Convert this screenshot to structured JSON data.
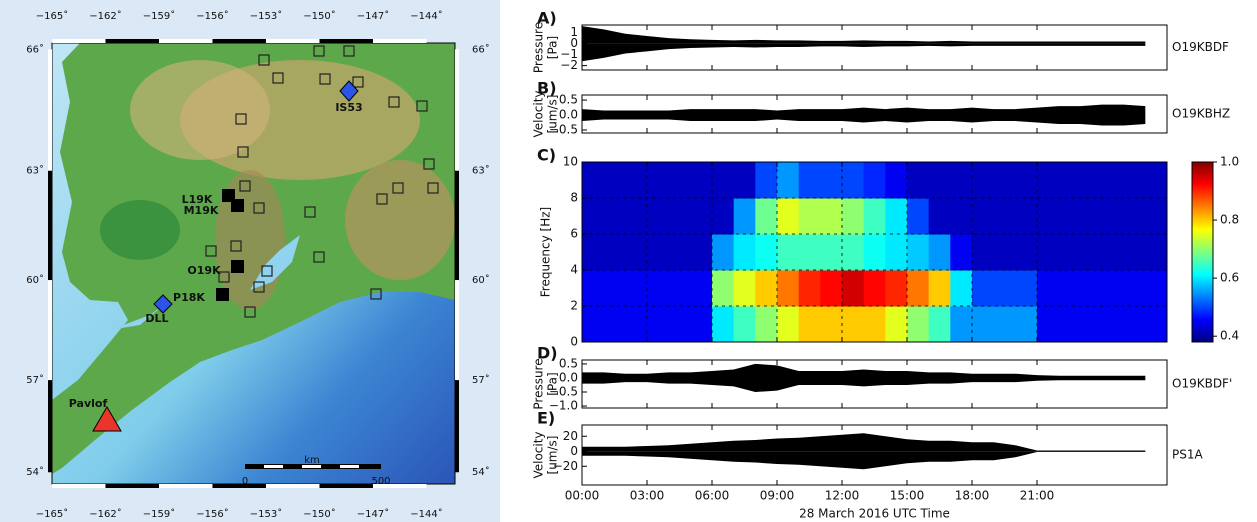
{
  "map": {
    "lonlim": [
      -165,
      -142.4
    ],
    "latlim": [
      53.6,
      66.15
    ],
    "lon_ticks": [
      {
        "value": -165,
        "label": "−165˚"
      },
      {
        "value": -162,
        "label": "−162˚"
      },
      {
        "value": -159,
        "label": "−159˚"
      },
      {
        "value": -156,
        "label": "−156˚"
      },
      {
        "value": -153,
        "label": "−153˚"
      },
      {
        "value": -150,
        "label": "−150˚"
      },
      {
        "value": -147,
        "label": "−147˚"
      },
      {
        "value": -144,
        "label": "−144˚"
      }
    ],
    "lat_ticks": [
      {
        "value": 66,
        "label": "66˚"
      },
      {
        "value": 63,
        "label": "63˚"
      },
      {
        "value": 60,
        "label": "60˚"
      },
      {
        "value": 57,
        "label": "57˚"
      },
      {
        "value": 54,
        "label": "54˚"
      }
    ],
    "stations": [
      "IS53",
      "L19K",
      "M19K",
      "O19K",
      "P18K",
      "DLL"
    ],
    "volcano": "Pavlof",
    "scale_unit": "km",
    "scale_labels": [
      "0",
      "500"
    ]
  },
  "chart_data": [
    {
      "type": "waveform",
      "panel_label": "A)",
      "ylabel": [
        "Pressure",
        "[Pa]"
      ],
      "station": "O19KBDF",
      "color": "#000000",
      "x": [
        0,
        1,
        2,
        3,
        4,
        5,
        6,
        7,
        8,
        9,
        10,
        11,
        12,
        13,
        14,
        15,
        16,
        17,
        18,
        19,
        20,
        21,
        22,
        23,
        24,
        25,
        26
      ],
      "values": [
        1.6,
        1.3,
        0.9,
        0.7,
        0.5,
        0.4,
        0.35,
        0.3,
        0.35,
        0.3,
        0.3,
        0.25,
        0.25,
        0.3,
        0.25,
        0.25,
        0.2,
        0.25,
        0.2,
        0.2,
        0.2,
        0.2,
        0.2,
        0.2,
        0.2,
        0.2,
        0.2
      ],
      "xlim": [
        0,
        27
      ],
      "ylim": [
        -2.4,
        1.7
      ],
      "yticks": [
        1,
        0,
        {
          "value": -1,
          "label": "−1"
        },
        {
          "value": -2,
          "label": "−2"
        }
      ]
    },
    {
      "type": "waveform",
      "panel_label": "B)",
      "ylabel": [
        "Velocity",
        "[um/s]"
      ],
      "station": "O19KBHZ",
      "color": "#000000",
      "x": [
        0,
        1,
        2,
        3,
        4,
        5,
        6,
        7,
        8,
        9,
        10,
        11,
        12,
        13,
        14,
        15,
        16,
        17,
        18,
        19,
        20,
        21,
        22,
        23,
        24,
        25,
        26
      ],
      "values": [
        0.2,
        0.15,
        0.15,
        0.15,
        0.15,
        0.2,
        0.2,
        0.2,
        0.2,
        0.15,
        0.2,
        0.2,
        0.2,
        0.25,
        0.2,
        0.25,
        0.2,
        0.2,
        0.25,
        0.2,
        0.2,
        0.25,
        0.3,
        0.3,
        0.35,
        0.35,
        0.3
      ],
      "xlim": [
        0,
        27
      ],
      "ylim": [
        -0.6,
        0.67
      ],
      "yticks": [
        0.5,
        {
          "value": 0,
          "label": "0.0"
        },
        {
          "value": -0.5,
          "label": "−0.5"
        }
      ]
    },
    {
      "type": "heatmap",
      "panel_label": "C)",
      "ylabel": [
        "Frequency [Hz]"
      ],
      "colormap": "jet",
      "grid": true,
      "x": [
        0,
        1,
        2,
        3,
        4,
        5,
        6,
        7,
        8,
        9,
        10,
        11,
        12,
        13,
        14,
        15,
        16,
        17,
        18,
        19,
        20,
        21,
        22,
        23,
        24,
        25,
        26
      ],
      "y": [
        0,
        2,
        4,
        6,
        8
      ],
      "z": [
        [
          0.45,
          0.45,
          0.45,
          0.45,
          0.45,
          0.45,
          0.6,
          0.65,
          0.7,
          0.75,
          0.8,
          0.8,
          0.8,
          0.8,
          0.75,
          0.7,
          0.65,
          0.55,
          0.55,
          0.55,
          0.55,
          0.45,
          0.45,
          0.45,
          0.45,
          0.45,
          0.45
        ],
        [
          0.45,
          0.45,
          0.45,
          0.45,
          0.45,
          0.45,
          0.7,
          0.75,
          0.8,
          0.85,
          0.9,
          0.92,
          0.95,
          0.92,
          0.9,
          0.85,
          0.8,
          0.6,
          0.5,
          0.5,
          0.5,
          0.45,
          0.45,
          0.45,
          0.45,
          0.45,
          0.45
        ],
        [
          0.42,
          0.42,
          0.42,
          0.42,
          0.42,
          0.42,
          0.55,
          0.6,
          0.62,
          0.65,
          0.65,
          0.65,
          0.65,
          0.62,
          0.6,
          0.58,
          0.55,
          0.45,
          0.42,
          0.42,
          0.42,
          0.42,
          0.42,
          0.42,
          0.42,
          0.42,
          0.42
        ],
        [
          0.42,
          0.42,
          0.42,
          0.42,
          0.42,
          0.42,
          0.42,
          0.55,
          0.68,
          0.75,
          0.72,
          0.72,
          0.7,
          0.65,
          0.6,
          0.5,
          0.42,
          0.42,
          0.42,
          0.42,
          0.42,
          0.42,
          0.42,
          0.42,
          0.42,
          0.42,
          0.42
        ],
        [
          0.42,
          0.42,
          0.42,
          0.42,
          0.42,
          0.42,
          0.42,
          0.42,
          0.5,
          0.55,
          0.5,
          0.5,
          0.5,
          0.48,
          0.45,
          0.42,
          0.42,
          0.42,
          0.42,
          0.42,
          0.42,
          0.42,
          0.42,
          0.42,
          0.42,
          0.42,
          0.42
        ]
      ],
      "xlim": [
        0,
        27
      ],
      "ylim": [
        0,
        10
      ],
      "yticks": [
        0,
        2,
        4,
        6,
        8,
        10
      ],
      "clim": [
        0.38,
        1.0
      ],
      "cticks": [
        {
          "value": 1.0,
          "label": "1.0"
        },
        0.8,
        0.6,
        0.4
      ]
    },
    {
      "type": "waveform",
      "panel_label": "D)",
      "ylabel": [
        "Pressure",
        "[Pa]"
      ],
      "station": "O19KBDF'",
      "color": "#000000",
      "x": [
        0,
        1,
        2,
        3,
        4,
        5,
        6,
        7,
        8,
        9,
        10,
        11,
        12,
        13,
        14,
        15,
        16,
        17,
        18,
        19,
        20,
        21,
        22,
        23,
        24,
        25,
        26
      ],
      "values": [
        0.2,
        0.2,
        0.15,
        0.15,
        0.2,
        0.2,
        0.25,
        0.3,
        0.5,
        0.45,
        0.25,
        0.25,
        0.25,
        0.3,
        0.25,
        0.25,
        0.2,
        0.2,
        0.15,
        0.15,
        0.15,
        0.1,
        0.08,
        0.08,
        0.08,
        0.08,
        0.08
      ],
      "xlim": [
        0,
        27
      ],
      "ylim": [
        -1.07,
        0.64
      ],
      "yticks": [
        0.5,
        {
          "value": 0,
          "label": "0.0"
        },
        {
          "value": -0.5,
          "label": "−0.5"
        },
        {
          "value": -1,
          "label": "−1.0"
        }
      ]
    },
    {
      "type": "waveform",
      "panel_label": "E)",
      "ylabel": [
        "Velocity",
        "[um/s]"
      ],
      "station": "PS1A",
      "color": "#000000",
      "x": [
        0,
        1,
        2,
        3,
        4,
        5,
        6,
        7,
        8,
        9,
        10,
        11,
        12,
        13,
        14,
        15,
        16,
        17,
        18,
        19,
        20,
        21,
        22,
        23,
        24,
        25,
        26
      ],
      "values": [
        6,
        6,
        6,
        7,
        8,
        10,
        12,
        14,
        15,
        17,
        18,
        20,
        22,
        24,
        20,
        16,
        14,
        14,
        12,
        12,
        8,
        1,
        1,
        1,
        1,
        1,
        1
      ],
      "xlim": [
        0,
        27
      ],
      "ylim": [
        -45,
        35
      ],
      "yticks": [
        20,
        0,
        {
          "value": -20,
          "label": "−20"
        }
      ],
      "xticks": [
        {
          "value": 0,
          "label": "00:00"
        },
        {
          "value": 3,
          "label": "03:00"
        },
        {
          "value": 6,
          "label": "06:00"
        },
        {
          "value": 9,
          "label": "09:00"
        },
        {
          "value": 12,
          "label": "12:00"
        },
        {
          "value": 15,
          "label": "15:00"
        },
        {
          "value": 18,
          "label": "18:00"
        },
        {
          "value": 21,
          "label": "21:00"
        }
      ],
      "xlabel": "28 March 2016 UTC Time"
    }
  ]
}
